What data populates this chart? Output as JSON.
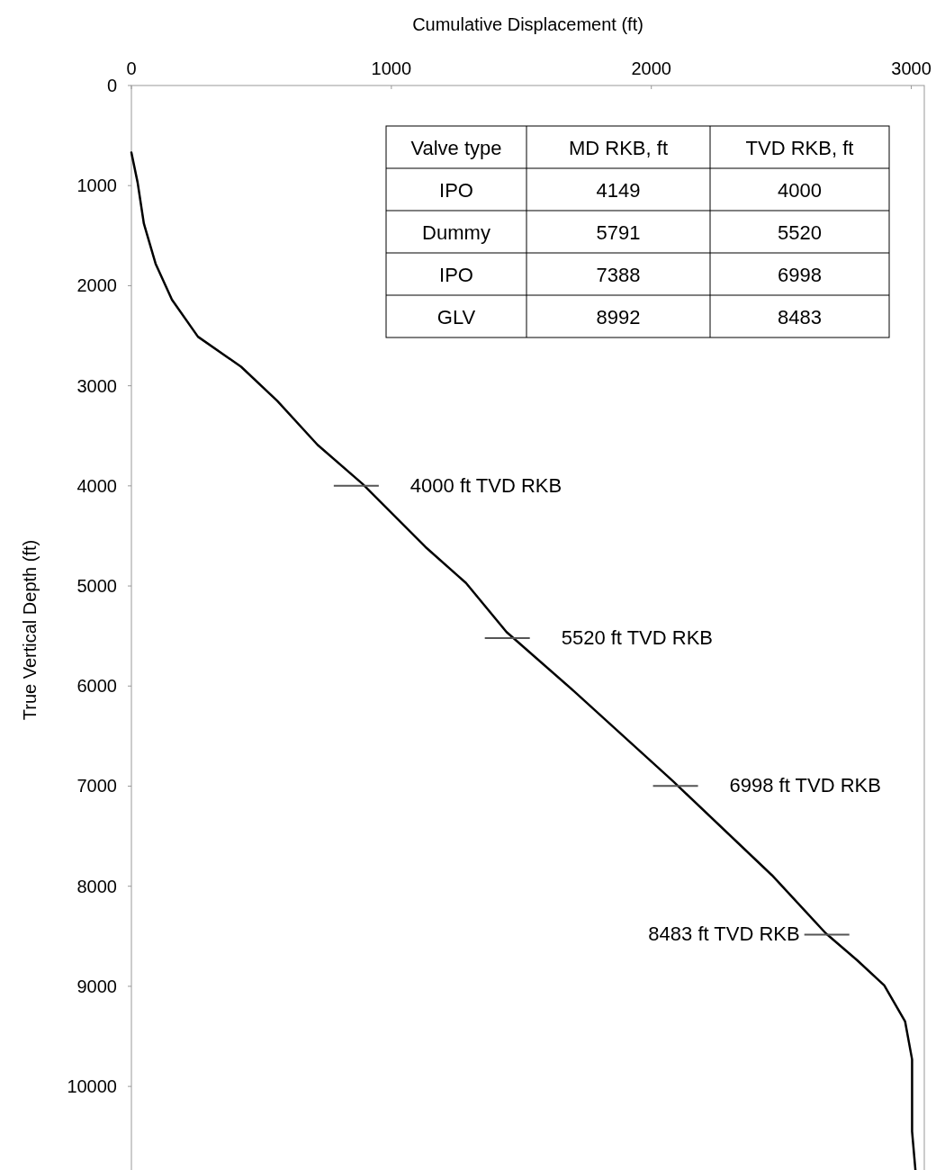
{
  "chart_data": [
    {
      "type": "line",
      "xlabel": "Cumulative Displacement (ft)",
      "ylabel": "True Vertical Depth (ft)",
      "xlim": [
        0,
        3050
      ],
      "ylim": [
        10880,
        0
      ],
      "xticks": [
        0,
        1000,
        2000,
        3000
      ],
      "yticks": [
        0,
        1000,
        2000,
        3000,
        4000,
        5000,
        6000,
        7000,
        8000,
        9000,
        10000
      ],
      "grid": false,
      "marker": "none",
      "line_style": "solid",
      "series": [
        {
          "color": "#000000",
          "x": [
            0,
            24,
            48,
            93,
            156,
            256,
            422,
            561,
            716,
            889,
            1131,
            1287,
            1443,
            1702,
            2083,
            2464,
            2671,
            2792,
            2896,
            2976,
            3003,
            3003,
            3017
          ],
          "values": [
            670,
            970,
            1380,
            1780,
            2140,
            2510,
            2810,
            3150,
            3590,
            3980,
            4610,
            4970,
            5460,
            6050,
            6950,
            7890,
            8470,
            8740,
            8990,
            9350,
            9730,
            10450,
            10870
          ]
        }
      ],
      "annotations": [
        {
          "text": "4000 ft TVD RKB",
          "x": 865,
          "y": 4000
        },
        {
          "text": "5520 ft TVD RKB",
          "x": 1446,
          "y": 5520
        },
        {
          "text": "6998 ft TVD RKB",
          "x": 2093,
          "y": 6998
        },
        {
          "text": "8483 ft TVD RKB",
          "x": 2675,
          "y": 8483
        }
      ]
    },
    {
      "type": "other",
      "categories": [
        "Valve type",
        "MD RKB, ft",
        "TVD RKB, ft"
      ],
      "cells": [
        [
          "IPO",
          "4149",
          "4000"
        ],
        [
          "Dummy",
          "5791",
          "5520"
        ],
        [
          "IPO",
          "7388",
          "6998"
        ],
        [
          "GLV",
          "8992",
          "8483"
        ]
      ]
    }
  ]
}
